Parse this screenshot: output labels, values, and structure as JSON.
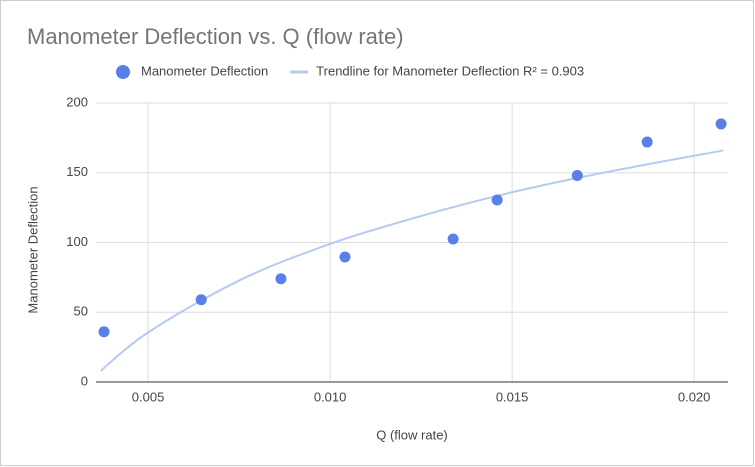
{
  "chart_data": {
    "type": "scatter",
    "title": "Manometer Deflection vs. Q (flow rate)",
    "x_label": "Q (flow rate)",
    "y_label": "Manometer Deflection",
    "series": [
      {
        "name": "Manometer Deflection",
        "color": "#5b7fe8",
        "kind": "points",
        "x": [
          0.00379,
          0.00646,
          0.00865,
          0.01041,
          0.01338,
          0.01459,
          0.01679,
          0.01871,
          0.02074
        ],
        "values": [
          36,
          59,
          74,
          89.6,
          102.5,
          130.5,
          148,
          172,
          185
        ]
      },
      {
        "name": "Trendline for Manometer Deflection R² = 0.903",
        "color": "#b7c9f3",
        "kind": "line",
        "x": [
          0.0037,
          0.005,
          0.0075,
          0.01,
          0.0125,
          0.015,
          0.0175,
          0.0208
        ],
        "values": [
          8,
          35.5,
          72.7,
          99,
          119,
          136,
          150,
          166
        ]
      }
    ],
    "xlim": [
      0.00357,
      0.02093
    ],
    "ylim": [
      0,
      200
    ],
    "xticks": [
      0.005,
      {
        "value": 0.01,
        "label": "0.010"
      },
      {
        "value": 0.015,
        "label": "0.015"
      },
      {
        "value": 0.02,
        "label": "0.020"
      }
    ],
    "yticks": [
      0,
      50,
      100,
      150,
      200
    ],
    "grid": true
  }
}
